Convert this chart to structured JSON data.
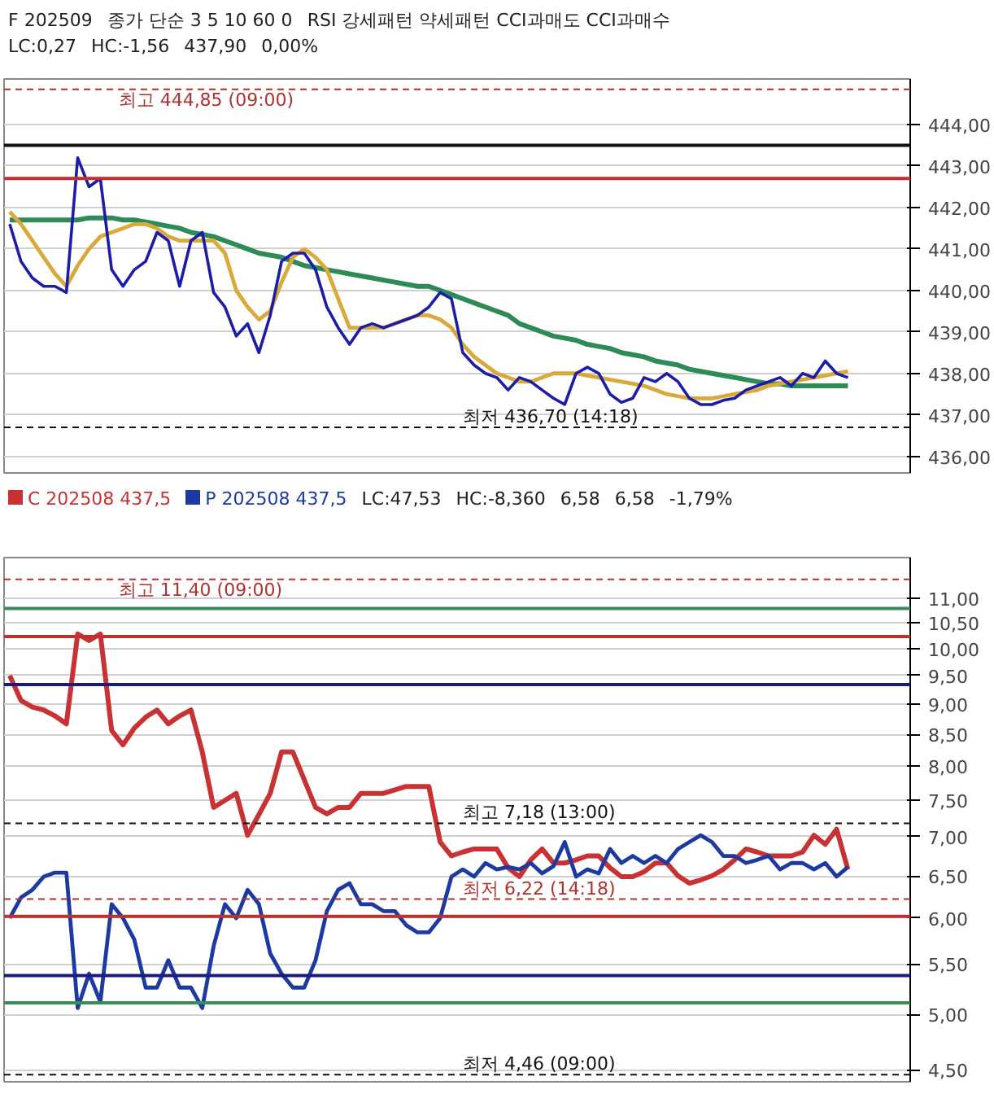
{
  "chart_data": [
    {
      "type": "line",
      "annotations": [
        "F 202509",
        "종가 단순 3 5 10 60 0",
        "RSI 강세패턴 약세패턴 CCI과매도 CCI과매수",
        "LC:0,27",
        "HC:-1,56",
        "437,90",
        "0,00%"
      ],
      "categories": [
        null,
        null,
        null,
        null,
        null,
        null,
        null,
        null,
        null,
        null,
        null,
        null,
        null,
        null,
        null,
        null,
        null,
        null,
        null,
        null,
        null,
        null,
        null,
        null,
        null,
        null,
        null,
        null,
        null,
        null,
        null,
        null,
        null,
        null,
        null,
        null,
        null,
        null,
        null,
        null,
        null,
        null,
        null,
        null,
        null,
        null,
        null,
        null,
        null,
        null,
        null,
        null,
        null,
        null,
        null,
        null,
        null,
        null,
        null,
        null,
        null,
        null,
        null,
        null,
        null,
        null,
        null,
        null,
        null,
        null,
        null,
        null,
        null,
        null,
        null,
        null,
        null,
        null,
        null,
        null
      ],
      "series": [
        {
          "color": "#2e8b57",
          "values": [
            441.7,
            441.7,
            441.7,
            441.7,
            441.7,
            441.7,
            441.7,
            441.75,
            441.75,
            441.75,
            441.7,
            441.7,
            441.65,
            441.6,
            441.55,
            441.5,
            441.4,
            441.35,
            441.3,
            441.2,
            441.1,
            441.0,
            440.9,
            440.85,
            440.8,
            440.7,
            440.6,
            440.55,
            440.5,
            440.45,
            440.4,
            440.35,
            440.3,
            440.25,
            440.2,
            440.15,
            440.1,
            440.1,
            440.0,
            439.9,
            439.8,
            439.7,
            439.6,
            439.5,
            439.4,
            439.2,
            439.1,
            439.0,
            438.9,
            438.85,
            438.8,
            438.7,
            438.65,
            438.6,
            438.5,
            438.45,
            438.4,
            438.3,
            438.25,
            438.2,
            438.1,
            438.05,
            438.0,
            437.95,
            437.9,
            437.85,
            437.8,
            437.75,
            437.75,
            437.7,
            437.7,
            437.7,
            437.7,
            437.7,
            437.7,
            null,
            null,
            null,
            null,
            null
          ]
        },
        {
          "color": "#d9a93a",
          "values": [
            441.9,
            441.6,
            441.2,
            440.8,
            440.4,
            440.1,
            440.6,
            441.0,
            441.3,
            441.4,
            441.5,
            441.6,
            441.6,
            441.5,
            441.3,
            441.2,
            441.2,
            441.2,
            441.2,
            440.9,
            440.0,
            439.6,
            439.3,
            439.5,
            440.2,
            440.8,
            441.0,
            440.8,
            440.5,
            439.8,
            439.1,
            439.1,
            439.1,
            439.1,
            439.2,
            439.3,
            439.4,
            439.4,
            439.3,
            439.1,
            438.7,
            438.4,
            438.2,
            438.0,
            437.9,
            437.8,
            437.8,
            437.9,
            438.0,
            438.0,
            438.0,
            437.95,
            437.9,
            437.85,
            437.8,
            437.75,
            437.7,
            437.6,
            437.5,
            437.45,
            437.4,
            437.4,
            437.4,
            437.45,
            437.5,
            437.55,
            437.6,
            437.7,
            437.75,
            437.8,
            437.85,
            437.9,
            437.95,
            438.0,
            438.05,
            null,
            null,
            null,
            null,
            null
          ]
        },
        {
          "color": "#1c1ca8",
          "values": [
            441.6,
            440.7,
            440.3,
            440.1,
            440.1,
            439.95,
            443.2,
            442.5,
            442.7,
            440.5,
            440.1,
            440.5,
            440.7,
            441.4,
            441.2,
            440.1,
            441.2,
            441.4,
            439.95,
            439.6,
            438.9,
            439.2,
            438.5,
            439.4,
            440.7,
            440.9,
            440.9,
            440.5,
            439.6,
            439.1,
            438.7,
            439.1,
            439.2,
            439.1,
            439.2,
            439.3,
            439.4,
            439.6,
            439.95,
            439.8,
            438.5,
            438.2,
            438.0,
            437.9,
            437.6,
            437.9,
            437.8,
            437.6,
            437.4,
            437.25,
            438.0,
            438.15,
            438.0,
            437.5,
            437.3,
            437.4,
            437.9,
            437.8,
            438.0,
            437.8,
            437.4,
            437.25,
            437.25,
            437.35,
            437.4,
            437.6,
            437.7,
            437.8,
            437.9,
            437.7,
            438.0,
            437.9,
            438.3,
            438.0,
            437.9,
            null,
            null,
            null,
            null,
            null
          ]
        }
      ],
      "ylim": [
        435.6,
        445.1
      ],
      "yticks": [
        {
          "value": 436,
          "label": "436,00"
        },
        {
          "value": 437,
          "label": "437,00"
        },
        {
          "value": 438,
          "label": "438,00"
        },
        {
          "value": 439,
          "label": "439,00"
        },
        {
          "value": 440,
          "label": "440,00"
        },
        {
          "value": 441,
          "label": "441,00"
        },
        {
          "value": 442,
          "label": "442,00"
        },
        {
          "value": 443,
          "label": "443,00"
        },
        {
          "value": 444,
          "label": "444,00"
        }
      ],
      "ref_lines": [
        {
          "axis": "y",
          "value": 444.85,
          "label": "최고 444,85 (09:00)",
          "color": "#b03030",
          "line_style": "dashed"
        },
        {
          "axis": "y",
          "value": 443.5,
          "color": "#111111",
          "line_style": "solid"
        },
        {
          "axis": "y",
          "value": 442.7,
          "color": "#c03030",
          "line_style": "solid"
        },
        {
          "axis": "y",
          "value": 436.7,
          "label": "최저 436,70 (14:18)",
          "color": "#111111",
          "line_style": "dashed"
        }
      ],
      "grid": "y",
      "tick_labels": "y",
      "line_style": "solid"
    },
    {
      "type": "line",
      "annotations": [
        "LC:47,53",
        "HC:-8,360",
        "6,58",
        "6,58",
        "-1,79%"
      ],
      "categories": [
        null,
        null,
        null,
        null,
        null,
        null,
        null,
        null,
        null,
        null,
        null,
        null,
        null,
        null,
        null,
        null,
        null,
        null,
        null,
        null,
        null,
        null,
        null,
        null,
        null,
        null,
        null,
        null,
        null,
        null,
        null,
        null,
        null,
        null,
        null,
        null,
        null,
        null,
        null,
        null,
        null,
        null,
        null,
        null,
        null,
        null,
        null,
        null,
        null,
        null,
        null,
        null,
        null,
        null,
        null,
        null,
        null,
        null,
        null,
        null,
        null,
        null,
        null,
        null,
        null,
        null,
        null,
        null,
        null,
        null,
        null,
        null,
        null,
        null,
        null,
        null,
        null,
        null,
        null,
        null
      ],
      "series": [
        {
          "name": "C 202508 437,5",
          "color": "#c83232",
          "values": [
            9.5,
            9.06,
            8.95,
            8.9,
            8.8,
            8.67,
            10.28,
            10.15,
            10.28,
            8.56,
            8.33,
            8.6,
            8.78,
            8.9,
            8.67,
            8.8,
            8.9,
            8.22,
            7.4,
            7.5,
            7.6,
            7.02,
            7.3,
            7.6,
            8.22,
            8.22,
            7.8,
            7.4,
            7.31,
            7.4,
            7.4,
            7.6,
            7.6,
            7.6,
            7.65,
            7.7,
            7.7,
            7.7,
            6.93,
            6.75,
            6.8,
            6.84,
            6.84,
            6.84,
            6.6,
            6.49,
            6.7,
            6.84,
            6.66,
            6.66,
            6.7,
            6.75,
            6.75,
            6.6,
            6.49,
            6.49,
            6.55,
            6.66,
            6.66,
            6.5,
            6.41,
            6.45,
            6.5,
            6.58,
            6.7,
            6.84,
            6.8,
            6.75,
            6.75,
            6.75,
            6.8,
            7.02,
            6.9,
            7.1,
            6.58,
            null,
            null,
            null,
            null,
            null
          ]
        },
        {
          "name": "P 202508 437,5",
          "color": "#1c3aa0",
          "values": [
            6.0,
            6.24,
            6.33,
            6.49,
            6.54,
            6.54,
            5.06,
            5.4,
            5.12,
            6.16,
            6.0,
            5.76,
            5.26,
            5.26,
            5.54,
            5.26,
            5.26,
            5.06,
            5.69,
            6.16,
            6.0,
            6.33,
            6.16,
            5.61,
            5.4,
            5.26,
            5.26,
            5.54,
            6.08,
            6.33,
            6.41,
            6.16,
            6.16,
            6.08,
            6.08,
            5.92,
            5.84,
            5.84,
            6.0,
            6.49,
            6.58,
            6.49,
            6.66,
            6.58,
            6.61,
            6.58,
            6.66,
            6.53,
            6.62,
            6.93,
            6.49,
            6.58,
            6.53,
            6.84,
            6.66,
            6.75,
            6.66,
            6.75,
            6.66,
            6.84,
            6.93,
            7.02,
            6.93,
            6.75,
            6.75,
            6.66,
            6.7,
            6.75,
            6.58,
            6.66,
            6.66,
            6.58,
            6.66,
            6.49,
            6.61,
            null,
            null,
            null,
            null,
            null
          ]
        }
      ],
      "log": "y",
      "ylim": [
        4.4,
        11.88
      ],
      "yticks": [
        {
          "value": 4.5,
          "label": "4,50"
        },
        {
          "value": 5,
          "label": "5,00"
        },
        {
          "value": 5.5,
          "label": "5,50"
        },
        {
          "value": 6,
          "label": "6,00"
        },
        {
          "value": 6.5,
          "label": "6,50"
        },
        {
          "value": 7,
          "label": "7,00"
        },
        {
          "value": 7.5,
          "label": "7,50"
        },
        {
          "value": 8,
          "label": "8,00"
        },
        {
          "value": 8.5,
          "label": "8,50"
        },
        {
          "value": 9,
          "label": "9,00"
        },
        {
          "value": 9.5,
          "label": "9,50"
        },
        {
          "value": 10,
          "label": "10,00"
        },
        {
          "value": 10.5,
          "label": "10,50"
        },
        {
          "value": 11,
          "label": "11,00"
        }
      ],
      "ref_lines": [
        {
          "axis": "y",
          "value": 11.4,
          "label": "최고 11,40 (09:00)",
          "color": "#b03030",
          "line_style": "dashed"
        },
        {
          "axis": "y",
          "value": 10.79,
          "color": "#3a8a5a",
          "line_style": "solid"
        },
        {
          "axis": "y",
          "value": 10.23,
          "color": "#c03030",
          "line_style": "solid"
        },
        {
          "axis": "y",
          "value": 9.34,
          "color": "#1a1a80",
          "line_style": "solid"
        },
        {
          "axis": "y",
          "value": 7.18,
          "label": "최고 7,18 (13:00)",
          "color": "#111111",
          "line_style": "dashed"
        },
        {
          "axis": "y",
          "value": 6.22,
          "label": "최저 6,22 (14:18)",
          "color": "#b03030",
          "line_style": "dashed"
        },
        {
          "axis": "y",
          "value": 6.02,
          "color": "#c03030",
          "line_style": "solid"
        },
        {
          "axis": "y",
          "value": 5.38,
          "color": "#1a1a80",
          "line_style": "solid"
        },
        {
          "axis": "y",
          "value": 5.11,
          "color": "#3a8a5a",
          "line_style": "solid"
        },
        {
          "axis": "y",
          "value": 4.46,
          "label": "최저 4,46 (09:00)",
          "color": "#111111",
          "line_style": "dashed"
        }
      ],
      "grid": "y",
      "tick_labels": "y",
      "line_style": "solid",
      "legend": "top left"
    }
  ]
}
